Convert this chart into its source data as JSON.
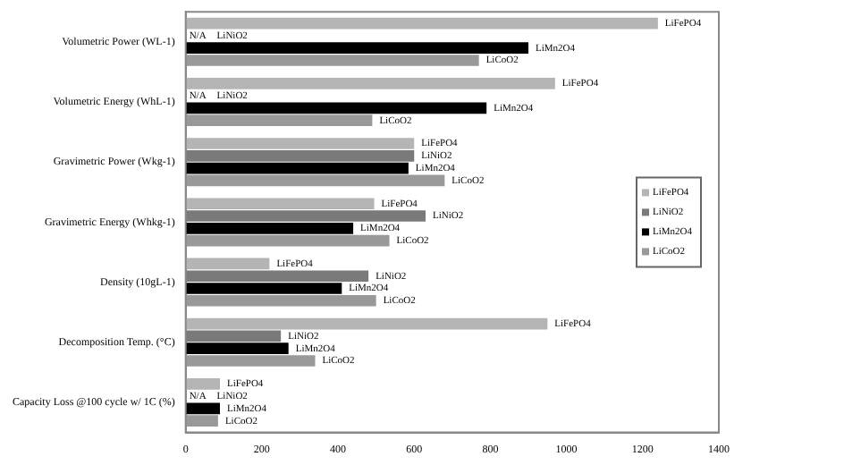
{
  "chart_data": {
    "type": "bar",
    "orientation": "horizontal",
    "categories": [
      "Volumetric Power (WL-1)",
      "Volumetric Energy (WhL-1)",
      "Gravimetric Power (Wkg-1)",
      "Gravimetric Energy (Whkg-1)",
      "Density (10gL-1)",
      "Decomposition Temp. (°C)",
      "Capacity Loss @100 cycle w/ 1C (%)"
    ],
    "series": [
      {
        "name": "LiFePO4",
        "color": "#b4b4b4",
        "values": [
          1240,
          970,
          600,
          495,
          220,
          950,
          90
        ]
      },
      {
        "name": "LiNiO2",
        "color": "#7a7a7a",
        "values": [
          null,
          null,
          600,
          630,
          480,
          250,
          null
        ],
        "value_labels": [
          "N/A",
          "N/A",
          null,
          null,
          null,
          null,
          "N/A"
        ]
      },
      {
        "name": "LiMn2O4",
        "color": "#000000",
        "values": [
          900,
          790,
          585,
          440,
          410,
          270,
          90
        ]
      },
      {
        "name": "LiCoO2",
        "color": "#999999",
        "values": [
          770,
          490,
          680,
          535,
          500,
          340,
          85
        ]
      }
    ],
    "xlim": [
      0,
      1400
    ],
    "xticks": [
      0,
      200,
      400,
      600,
      800,
      1000,
      1200,
      1400
    ],
    "grid": false,
    "legend": "right"
  }
}
